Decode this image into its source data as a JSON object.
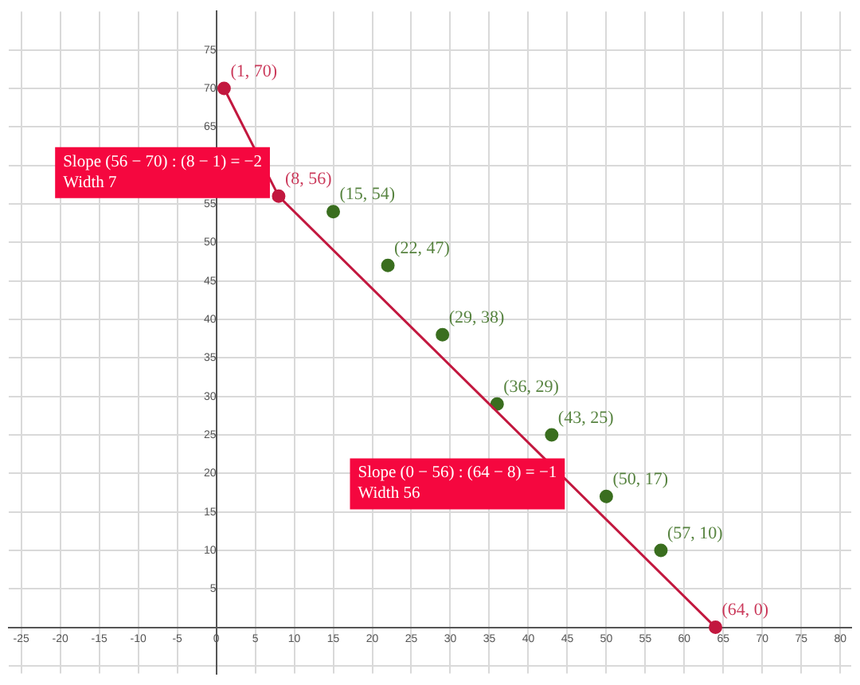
{
  "chart_data": {
    "type": "line",
    "xlim": [
      -26.6,
      81.4
    ],
    "ylim": [
      -6,
      80
    ],
    "xticks": [
      -25,
      -20,
      -15,
      -10,
      -5,
      0,
      5,
      10,
      15,
      20,
      25,
      30,
      35,
      40,
      45,
      50,
      55,
      60,
      65,
      70,
      75,
      80
    ],
    "yticks": [
      {
        "value": -5,
        "label": null
      },
      {
        "value": 0,
        "label": null
      },
      5,
      10,
      15,
      20,
      25,
      30,
      35,
      40,
      45,
      50,
      55,
      {
        "value": 60,
        "label": null
      },
      65,
      70,
      75
    ],
    "grid": true,
    "legend": false,
    "marker": "circle",
    "line_style": "solid",
    "series": [
      {
        "color": "#c2183f",
        "x": [
          1,
          8,
          64
        ],
        "values": [
          70,
          56,
          0
        ],
        "value_labels": [
          "(1, 70)",
          "(8, 56)",
          "(64, 0)"
        ]
      },
      {
        "type": "scatter",
        "color": "#3a6e1f",
        "x": [
          15,
          22,
          29,
          36,
          43,
          50,
          57
        ],
        "values": [
          54,
          47,
          38,
          29,
          25,
          17,
          10
        ],
        "value_labels": [
          "(15, 54)",
          "(22, 47)",
          "(29, 38)",
          "(36, 29)",
          "(43, 25)",
          "(50, 17)",
          "(57, 10)"
        ]
      }
    ],
    "annotations": [
      "Slope (56 − 70) : (8 − 1) = −2\nWidth 7",
      "Slope (0 − 56) : (64 − 8) = −1\nWidth 56"
    ]
  }
}
